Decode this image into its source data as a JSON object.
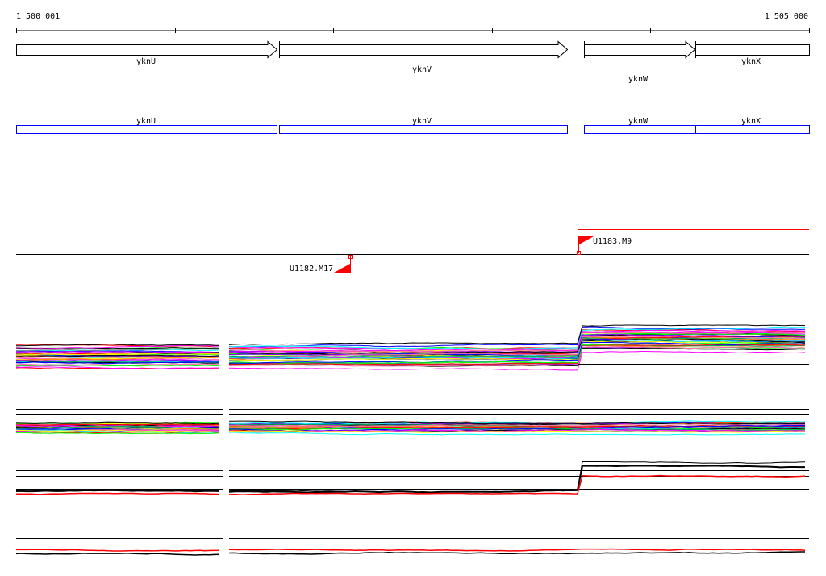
{
  "ruler": {
    "start_label": "1 500 001",
    "end_label": "1 505 000"
  },
  "genes": [
    {
      "name": "yknU",
      "strand": "+"
    },
    {
      "name": "yknV",
      "strand": "+"
    },
    {
      "name": "yknW",
      "strand": "+"
    },
    {
      "name": "yknX",
      "strand": "+"
    }
  ],
  "annotation_boxes": [
    {
      "name": "yknU"
    },
    {
      "name": "yknV"
    },
    {
      "name": "yknW"
    },
    {
      "name": "yknX"
    }
  ],
  "markers": [
    {
      "label": "U1183.M9",
      "direction": "up"
    },
    {
      "label": "U1182.M17",
      "direction": "down"
    }
  ],
  "colors": {
    "gene_outline": "#000000",
    "annotation_box": "#0000ff",
    "marker": "#ff0000",
    "track_line_red": "#ff0000",
    "track_line_green": "#00cc00",
    "trace_palette": [
      "#ff0000",
      "#00ff00",
      "#0000ff",
      "#ff00ff",
      "#00ffff",
      "#ffff00",
      "#ff8800",
      "#8800ff",
      "#000000",
      "#888888",
      "#00aa55",
      "#ff66aa"
    ]
  }
}
